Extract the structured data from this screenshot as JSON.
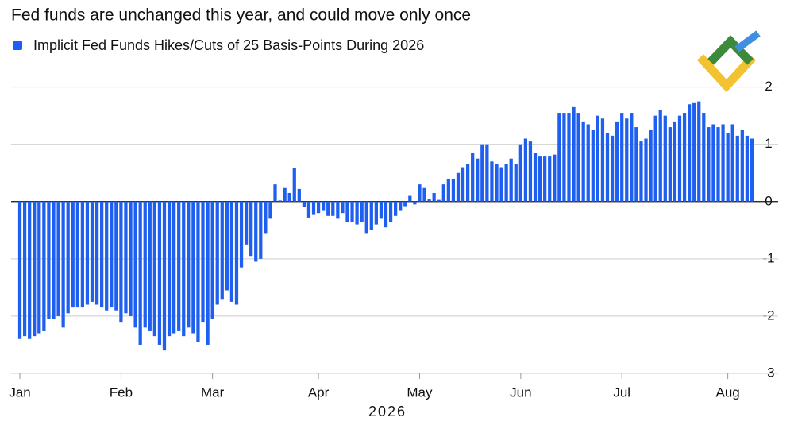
{
  "chart_data": {
    "type": "bar",
    "title": "Fed funds are unchanged this year, and could move only once",
    "legend": "Implicit Fed Funds Hikes/Cuts of 25 Basis-Points During 2026",
    "x_label": "2026",
    "color": "#1f5ff0",
    "categories": [
      "Jan",
      null,
      null,
      null,
      null,
      null,
      null,
      null,
      null,
      null,
      null,
      null,
      null,
      null,
      null,
      null,
      null,
      null,
      null,
      null,
      null,
      "Feb",
      null,
      null,
      null,
      null,
      null,
      null,
      null,
      null,
      null,
      null,
      null,
      null,
      null,
      null,
      null,
      null,
      null,
      null,
      "Mar",
      null,
      null,
      null,
      null,
      null,
      null,
      null,
      null,
      null,
      null,
      null,
      null,
      null,
      null,
      null,
      null,
      null,
      null,
      null,
      null,
      null,
      "Apr",
      null,
      null,
      null,
      null,
      null,
      null,
      null,
      null,
      null,
      null,
      null,
      null,
      null,
      null,
      null,
      null,
      null,
      null,
      null,
      null,
      "May",
      null,
      null,
      null,
      null,
      null,
      null,
      null,
      null,
      null,
      null,
      null,
      null,
      null,
      null,
      null,
      null,
      null,
      null,
      null,
      null,
      "Jun",
      null,
      null,
      null,
      null,
      null,
      null,
      null,
      null,
      null,
      null,
      null,
      null,
      null,
      null,
      null,
      null,
      null,
      null,
      null,
      null,
      "Jul",
      null,
      null,
      null,
      null,
      null,
      null,
      null,
      null,
      null,
      null,
      null,
      null,
      null,
      null,
      null,
      null,
      null,
      null,
      null,
      null,
      null,
      "Aug",
      null,
      null,
      null,
      null,
      null
    ],
    "values": [
      -2.4,
      -2.35,
      -2.4,
      -2.35,
      -2.3,
      -2.25,
      -2.05,
      -2.05,
      -2.0,
      -2.2,
      -1.95,
      -1.85,
      -1.85,
      -1.85,
      -1.8,
      -1.75,
      -1.8,
      -1.85,
      -1.9,
      -1.85,
      -1.9,
      -2.1,
      -1.95,
      -2.0,
      -2.2,
      -2.5,
      -2.2,
      -2.25,
      -2.35,
      -2.5,
      -2.6,
      -2.35,
      -2.3,
      -2.25,
      -2.35,
      -2.2,
      -2.3,
      -2.45,
      -2.1,
      -2.5,
      -2.05,
      -1.8,
      -1.7,
      -1.55,
      -1.75,
      -1.8,
      -1.15,
      -0.75,
      -0.95,
      -1.05,
      -1.0,
      -0.55,
      -0.3,
      0.3,
      0.02,
      0.25,
      0.15,
      0.58,
      0.22,
      -0.1,
      -0.28,
      -0.22,
      -0.2,
      -0.15,
      -0.25,
      -0.25,
      -0.3,
      -0.2,
      -0.35,
      -0.35,
      -0.4,
      -0.35,
      -0.55,
      -0.5,
      -0.4,
      -0.3,
      -0.45,
      -0.35,
      -0.25,
      -0.15,
      -0.08,
      0.1,
      -0.05,
      0.3,
      0.25,
      0.05,
      0.15,
      0.03,
      0.3,
      0.4,
      0.4,
      0.5,
      0.6,
      0.65,
      0.85,
      0.75,
      1.0,
      1.0,
      0.7,
      0.65,
      0.6,
      0.65,
      0.75,
      0.65,
      1.0,
      1.1,
      1.05,
      0.85,
      0.8,
      0.8,
      0.8,
      0.82,
      1.55,
      1.55,
      1.55,
      1.65,
      1.55,
      1.4,
      1.35,
      1.25,
      1.5,
      1.45,
      1.2,
      1.15,
      1.4,
      1.55,
      1.45,
      1.55,
      1.3,
      1.05,
      1.1,
      1.25,
      1.5,
      1.6,
      1.5,
      1.3,
      1.4,
      1.5,
      1.55,
      1.7,
      1.72,
      1.75,
      1.55,
      1.3,
      1.35,
      1.3,
      1.35,
      1.2,
      1.35,
      1.15,
      1.25,
      1.15,
      1.1
    ],
    "ylim": [
      -3,
      2.3
    ],
    "yticks": [
      -3,
      -2,
      -1,
      0,
      1,
      2
    ],
    "grid": true
  }
}
